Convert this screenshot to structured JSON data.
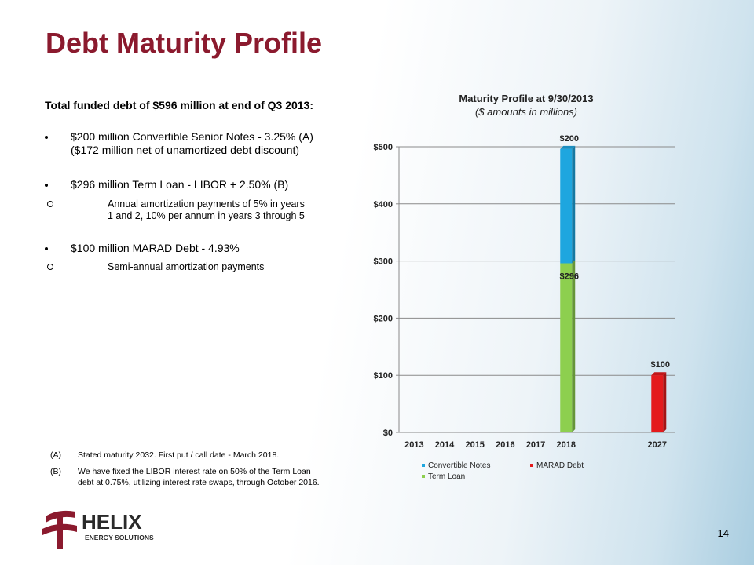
{
  "slide": {
    "title": "Debt Maturity Profile",
    "lead": "Total funded debt of $596 million at end of Q3 2013:",
    "bullets": [
      {
        "lines": [
          "$200 million Convertible Senior Notes - 3.25% (A)",
          "($172 million net of unamortized debt discount)"
        ],
        "sub": []
      },
      {
        "lines": [
          "$296 million Term Loan - LIBOR + 2.50% (B)"
        ],
        "sub": [
          [
            "Annual amortization payments of 5% in years",
            "1 and 2, 10% per annum in years 3 through 5"
          ]
        ]
      },
      {
        "lines": [
          "$100 million MARAD Debt - 4.93%"
        ],
        "sub": [
          [
            "Semi-annual amortization payments"
          ]
        ]
      }
    ],
    "footnotes": [
      {
        "key": "(A)",
        "lines": [
          "Stated maturity 2032. First put / call date - March 2018."
        ]
      },
      {
        "key": "(B)",
        "lines": [
          "We have fixed the LIBOR interest rate on 50% of the Term Loan",
          "debt at 0.75%, utilizing interest rate swaps, through October 2016."
        ]
      }
    ],
    "logo": {
      "name": "HELIX",
      "tagline": "ENERGY SOLUTIONS"
    },
    "page_number": "14"
  },
  "chart_data": {
    "type": "stacked_bar",
    "title": "Maturity Profile at 9/30/2013",
    "subtitle": "($ amounts in millions)",
    "categories": [
      "2013",
      "2014",
      "2015",
      "2016",
      "2017",
      "2018",
      "2027"
    ],
    "series": [
      {
        "name": "Convertible Notes",
        "color": "#1ea6df",
        "values": [
          null,
          null,
          null,
          null,
          null,
          200,
          null
        ],
        "value_labels": [
          null,
          null,
          null,
          null,
          null,
          "$200",
          null
        ]
      },
      {
        "name": "MARAD Debt",
        "color": "#e41a1c",
        "values": [
          null,
          null,
          null,
          null,
          null,
          null,
          100
        ],
        "value_labels": [
          null,
          null,
          null,
          null,
          null,
          null,
          "$100"
        ]
      },
      {
        "name": "Term Loan",
        "color": "#8dcf4f",
        "values": [
          null,
          null,
          null,
          null,
          null,
          296,
          null
        ],
        "value_labels": [
          null,
          null,
          null,
          null,
          null,
          "$296",
          null
        ]
      }
    ],
    "ylim": [
      0,
      500
    ],
    "yticks": [
      {
        "value": 0,
        "label": "$0"
      },
      {
        "value": 100,
        "label": "$100"
      },
      {
        "value": 200,
        "label": "$200"
      },
      {
        "value": 300,
        "label": "$300"
      },
      {
        "value": 400,
        "label": "$400"
      },
      {
        "value": 500,
        "label": "$500"
      }
    ],
    "grid": true
  }
}
